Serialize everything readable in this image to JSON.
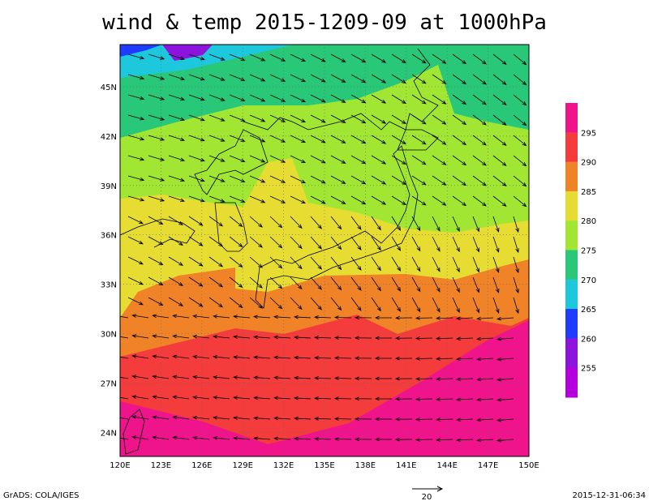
{
  "title": "wind & temp 2015-1209-09 at 1000hPa",
  "longitude_labels": [
    "120E",
    "123E",
    "126E",
    "129E",
    "132E",
    "135E",
    "138E",
    "141E",
    "144E",
    "147E",
    "150E"
  ],
  "latitude_labels": [
    "45N",
    "42N",
    "39N",
    "36N",
    "33N",
    "30N",
    "27N",
    "24N"
  ],
  "legend": {
    "labels": [
      "295",
      "290",
      "285",
      "280",
      "275",
      "270",
      "265",
      "260",
      "255"
    ]
  },
  "vector_reference": "20",
  "footer": {
    "left": "GrADS: COLA/IGES",
    "right": "2015-12-31-06:34"
  }
}
